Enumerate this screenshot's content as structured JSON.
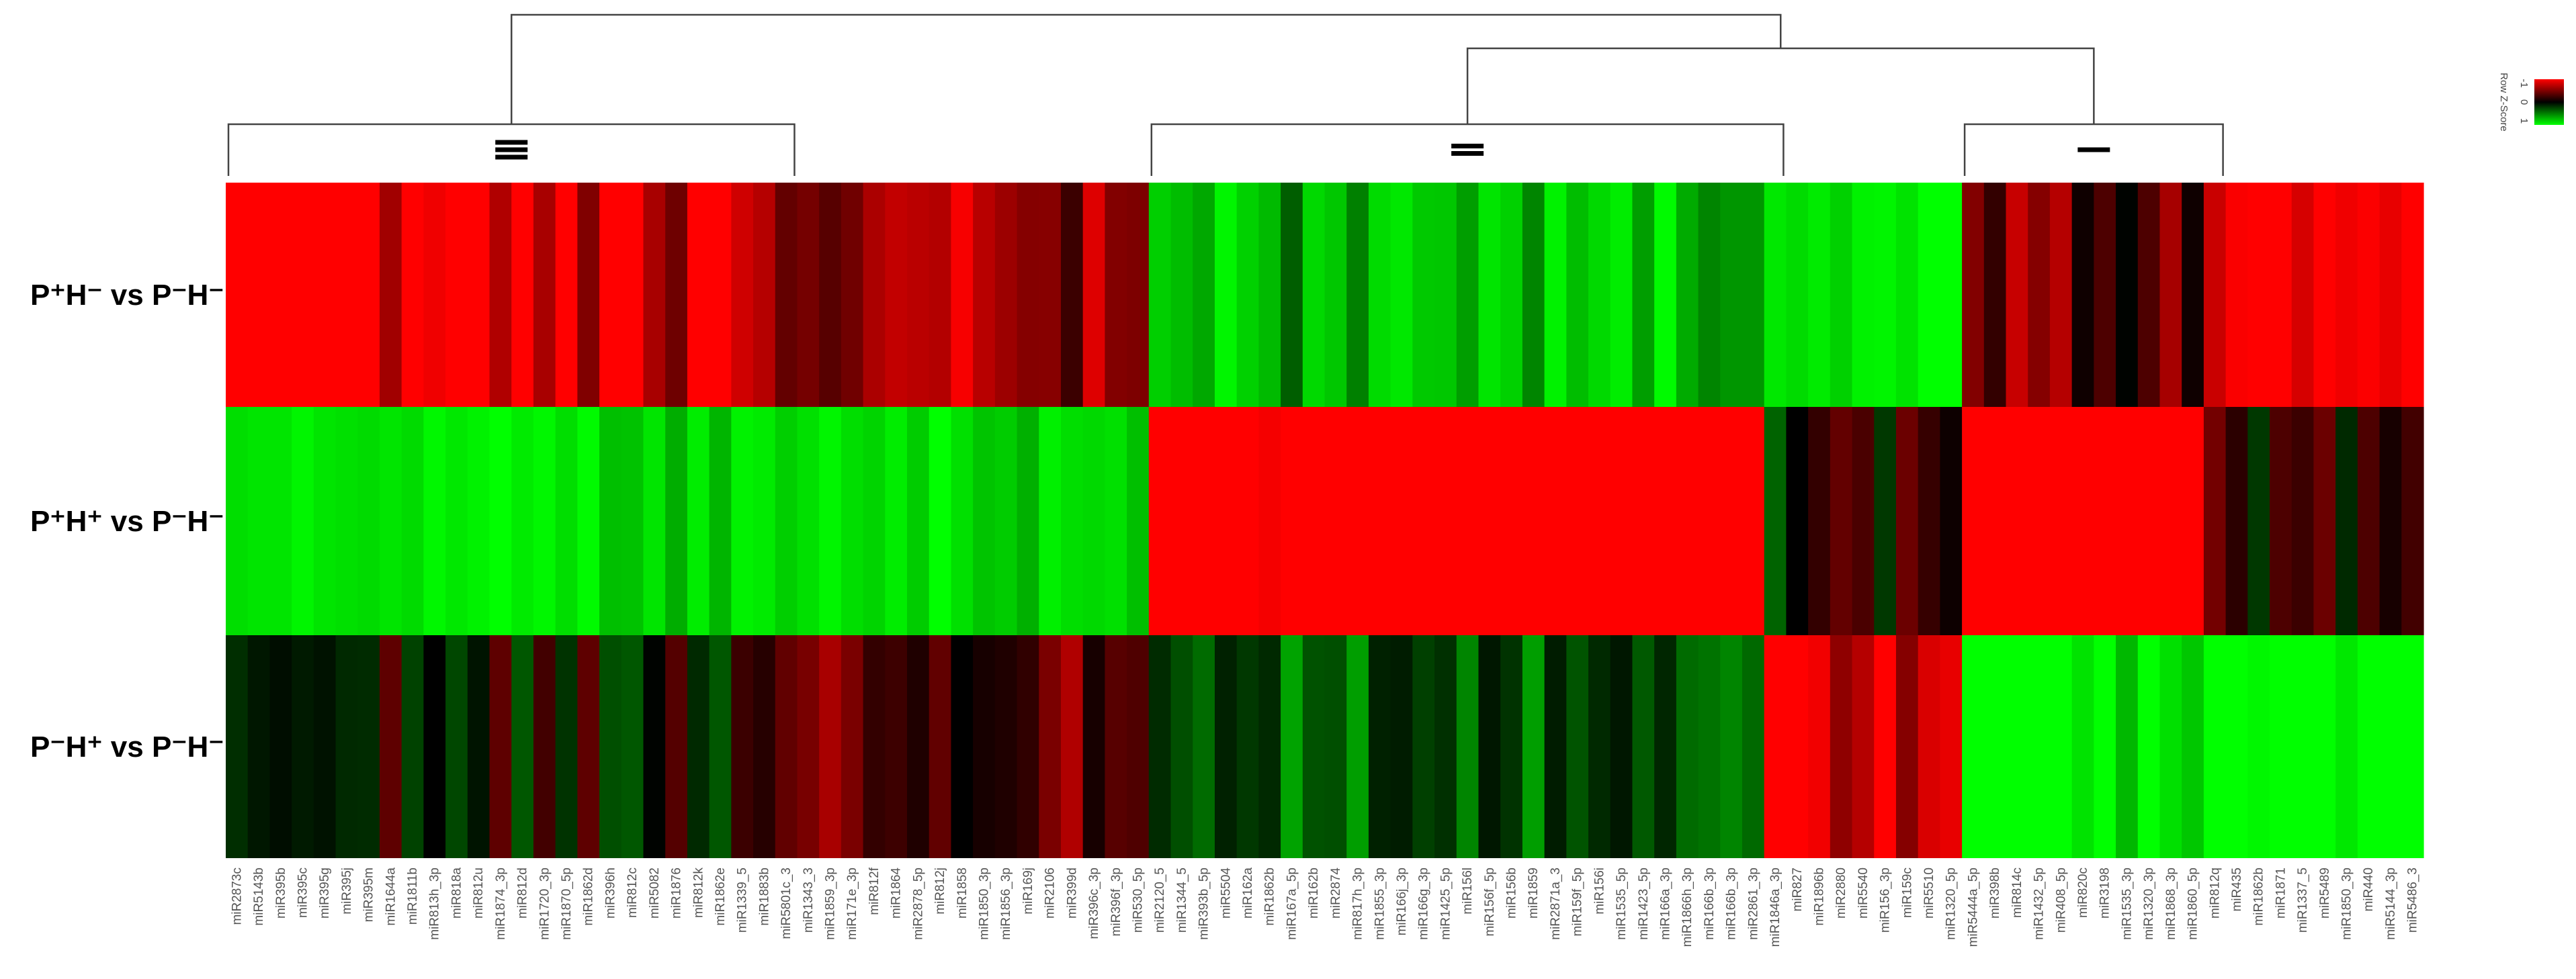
{
  "chart_data": {
    "type": "heatmap",
    "rows": [
      {
        "label": "P⁺H⁻ vs P⁻H⁻"
      },
      {
        "label": "P⁺H⁺ vs P⁻H⁻"
      },
      {
        "label": "P⁻H⁺ vs P⁻H⁻"
      }
    ],
    "columns": [
      "miR2873c",
      "miR5143b",
      "miR395b",
      "miR395c",
      "miR395g",
      "miR395j",
      "miR395m",
      "miR1644a",
      "miR1811b",
      "miR813h_3p",
      "miR818a",
      "miR812u",
      "miR1874_3p",
      "miR812d",
      "miR1720_3p",
      "miR1870_5p",
      "miR1862d",
      "miR396h",
      "miR812c",
      "miR5082",
      "miR1876",
      "miR812k",
      "miR1862e",
      "miR1339_5",
      "miR1883b",
      "miR5801c_3",
      "miR1343_3",
      "miR1859_3p",
      "miR171e_3p",
      "miR812f",
      "miR1864",
      "miR2878_5p",
      "miR812j",
      "miR1858",
      "miR1850_3p",
      "miR1856_3p",
      "miR169j",
      "miR2106",
      "miR399d",
      "miR396c_3p",
      "miR396f_3p",
      "miR530_5p",
      "miR2120_5",
      "miR1344_5",
      "miR393b_5p",
      "miR5504",
      "miR162a",
      "miR1862b",
      "miR167a_5p",
      "miR162b",
      "miR2874",
      "miR817h_3p",
      "miR1855_3p",
      "miR166j_3p",
      "miR166g_3p",
      "miR1425_5p",
      "miR156l",
      "miR156f_5p",
      "miR156b",
      "miR1859",
      "miR2871a_3",
      "miR159f_5p",
      "miR156i",
      "miR1535_5p",
      "miR1423_5p",
      "miR166a_3p",
      "miR1866h_3p",
      "miR166b_3p",
      "miR166b_3p",
      "miR2861_3p",
      "miR1846a_3p",
      "miR827",
      "miR1896b",
      "miR2880",
      "miR5540",
      "miR156_3p",
      "miR159c",
      "miR5510",
      "miR1320_5p",
      "miR5444a_5p",
      "miR398b",
      "miR814c",
      "miR1432_5p",
      "miR408_5p",
      "miR820c",
      "miR3198",
      "miR1535_3p",
      "miR1320_3p",
      "miR1868_3p",
      "miR1860_5p",
      "miR812q",
      "miR435",
      "miR1862b",
      "miR1871",
      "miR1337_5",
      "miR5489",
      "miR1850_3p",
      "miR440",
      "miR5144_3p",
      "miR5486_3"
    ],
    "clusters": [
      {
        "label": "III"
      },
      {
        "label": "II"
      },
      {
        "label": "I"
      }
    ],
    "legend": {
      "title": "Row Z-Score",
      "ticks": [
        "-1",
        "0",
        "1"
      ],
      "range": [
        -1,
        1
      ],
      "colors": {
        "low": "#ff0000",
        "mid": "#000000",
        "high": "#00ff00"
      }
    },
    "values": [
      [
        -1.05,
        -1.16,
        -1.16,
        -1.13,
        -1.06,
        -1.08,
        -1.06,
        -0.63,
        -1.16,
        -0.94,
        -1.17,
        -1.04,
        -0.69,
        -1.18,
        -0.66,
        -1.14,
        -0.5,
        -1.06,
        -1.03,
        -0.66,
        -0.43,
        -1.14,
        -1.12,
        -0.81,
        -0.71,
        -0.39,
        -0.46,
        -0.34,
        -0.44,
        -0.67,
        -0.76,
        -0.73,
        -0.7,
        -0.97,
        -0.72,
        -0.61,
        -0.52,
        -0.53,
        -0.23,
        -0.87,
        -0.51,
        -0.49,
        0.81,
        0.74,
        0.66,
        0.96,
        0.82,
        0.73,
        0.37,
        0.85,
        0.78,
        0.5,
        0.86,
        0.91,
        0.79,
        0.78,
        0.62,
        0.9,
        0.82,
        0.52,
        0.95,
        0.74,
        0.85,
        0.93,
        0.62,
        0.98,
        0.67,
        0.52,
        0.59,
        0.59,
        0.91,
        0.86,
        0.92,
        0.82,
        0.95,
        0.96,
        0.89,
        1.07,
        1.01,
        -0.51,
        -0.2,
        -0.78,
        -0.52,
        -0.71,
        -0.06,
        -0.3,
        0.01,
        -0.3,
        -0.65,
        -0.06,
        -0.79,
        -0.98,
        -1.02,
        -1.02,
        -0.84,
        -1.09,
        -0.94,
        -0.99,
        -0.91,
        -1.03
      ],
      [
        0.87,
        0.9,
        0.9,
        0.96,
        0.9,
        0.88,
        0.86,
        0.9,
        0.86,
        0.97,
        0.91,
        0.95,
        1.09,
        0.92,
        0.97,
        0.87,
        0.98,
        0.75,
        0.76,
        0.9,
        0.68,
        0.93,
        0.71,
        0.95,
        0.92,
        0.81,
        0.88,
        0.96,
        0.87,
        0.83,
        0.93,
        0.8,
        1.02,
        0.88,
        0.77,
        0.8,
        0.69,
        0.94,
        0.87,
        0.85,
        0.88,
        0.75,
        -1.02,
        -1.09,
        -1.12,
        -1.03,
        -1.12,
        -0.96,
        -1.04,
        -1.13,
        -1.15,
        -1.15,
        -1.04,
        -1.02,
        -1.11,
        -1.04,
        -1.14,
        -1.06,
        -1.08,
        -1.17,
        -1.11,
        -1.1,
        -1.07,
        -1.0,
        -1.03,
        -1.09,
        -1.15,
        -1.0,
        -1.09,
        -1.07,
        0.39,
        -0.0,
        -0.2,
        -0.39,
        -0.29,
        0.22,
        -0.42,
        -0.21,
        -0.05,
        -1.03,
        -1.07,
        -1.01,
        -1.03,
        -1.07,
        -1.08,
        -1.13,
        -1.11,
        -1.07,
        -1.0,
        -1.06,
        -0.45,
        -0.17,
        0.22,
        -0.3,
        -0.23,
        -0.42,
        0.16,
        -0.3,
        -0.09,
        -0.26
      ],
      [
        0.18,
        0.09,
        0.05,
        0.1,
        0.07,
        0.16,
        0.17,
        -0.37,
        0.26,
        -0.0,
        0.28,
        0.08,
        -0.37,
        0.34,
        -0.26,
        0.2,
        -0.37,
        0.31,
        0.34,
        0.01,
        -0.33,
        0.16,
        0.34,
        -0.23,
        -0.15,
        -0.38,
        -0.47,
        -0.66,
        -0.48,
        -0.2,
        -0.24,
        -0.12,
        -0.38,
        -0.0,
        -0.09,
        -0.12,
        -0.19,
        -0.48,
        -0.69,
        -0.09,
        -0.34,
        -0.31,
        0.17,
        0.31,
        0.42,
        0.13,
        0.22,
        0.16,
        0.64,
        0.32,
        0.31,
        0.62,
        0.13,
        0.11,
        0.25,
        0.19,
        0.52,
        0.09,
        0.2,
        0.62,
        0.11,
        0.33,
        0.16,
        0.09,
        0.35,
        0.15,
        0.42,
        0.45,
        0.52,
        0.41,
        -1.16,
        -1.06,
        -0.95,
        -0.56,
        -0.71,
        -1.19,
        -0.52,
        -0.85,
        -0.91,
        1.12,
        1.03,
        1.03,
        1.08,
        1.04,
        0.89,
        1.1,
        0.72,
        1.1,
        0.88,
        0.78,
        1.05,
        1.08,
        0.97,
        1.09,
        1.09,
        1.13,
        0.91,
        1.07,
        1.13,
        1.13
      ]
    ]
  }
}
